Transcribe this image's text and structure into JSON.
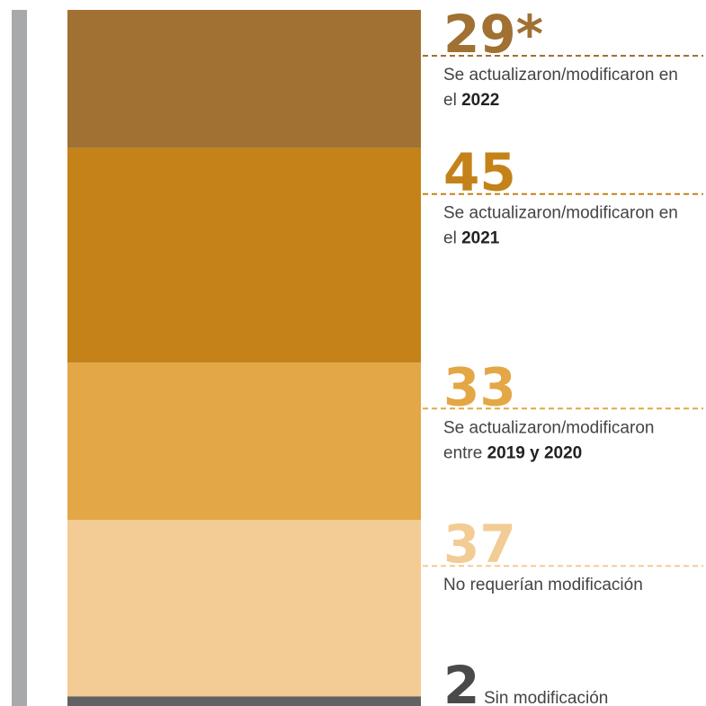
{
  "chart_data": {
    "type": "stacked_bar",
    "series": [
      {
        "name": "Se actualizaron/modificaron en el",
        "highlight": "2022",
        "color": "#a07132",
        "values": [
          29
        ],
        "value_labels": [
          "29*"
        ]
      },
      {
        "name": "Se actualizaron/modificaron en el",
        "highlight": "2021",
        "color": "#c48218",
        "values": [
          45
        ]
      },
      {
        "name": "Se actualizaron/modificaron entre",
        "highlight": "2019 y 2020",
        "color": "#e3a746",
        "values": [
          33
        ]
      },
      {
        "name": "No requerían modificación",
        "color": "#f3cb94",
        "values": [
          37
        ]
      },
      {
        "name": "Sin modificación",
        "color": "#626262",
        "values": [
          2
        ]
      }
    ]
  }
}
